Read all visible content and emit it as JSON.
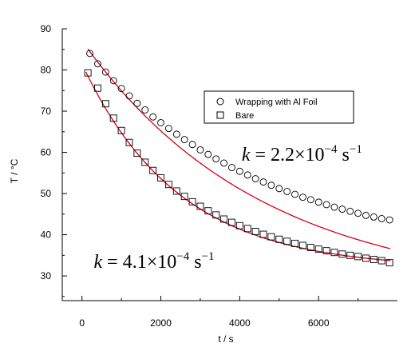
{
  "chart_data": {
    "type": "scatter",
    "title": "",
    "xlabel": "t / s",
    "ylabel": "T / °C",
    "xlim": [
      -500,
      8000
    ],
    "ylim": [
      24,
      90
    ],
    "xticks": [
      0,
      2000,
      4000,
      6000
    ],
    "yticks": [
      30,
      40,
      50,
      60,
      70,
      80,
      90
    ],
    "x_tick_labels": [
      "0",
      "2000",
      "4000",
      "6000"
    ],
    "y_tick_labels": [
      "30",
      "40",
      "50",
      "60",
      "70",
      "80",
      "90"
    ],
    "grid": false,
    "legend": "upper-right-center",
    "fit_color": "#d0021b",
    "series": [
      {
        "name": "Wrapping with Al Foil",
        "marker": "circle",
        "fit": {
          "T_inf": 25.6,
          "A": 61.5,
          "k": 0.00022
        },
        "x": [
          200,
          400,
          600,
          800,
          1000,
          1200,
          1400,
          1600,
          1800,
          2000,
          2200,
          2400,
          2600,
          2800,
          3000,
          3200,
          3400,
          3600,
          3800,
          4000,
          4200,
          4400,
          4600,
          4800,
          5000,
          5200,
          5400,
          5600,
          5800,
          6000,
          6200,
          6400,
          6600,
          6800,
          7000,
          7200,
          7400,
          7600,
          7800
        ],
        "y": [
          84.0,
          81.5,
          79.5,
          77.4,
          75.5,
          73.7,
          71.9,
          70.3,
          68.6,
          67.2,
          65.8,
          64.4,
          63.1,
          61.9,
          60.6,
          59.5,
          58.4,
          57.4,
          56.3,
          55.4,
          54.5,
          53.6,
          52.8,
          52.0,
          51.2,
          50.5,
          49.8,
          49.1,
          48.5,
          47.9,
          47.3,
          46.7,
          46.2,
          45.7,
          45.2,
          44.7,
          44.3,
          43.9,
          43.6
        ]
      },
      {
        "name": "Bare",
        "marker": "square",
        "fit": {
          "T_inf": 31.7,
          "A": 49.8,
          "k": 0.00041
        },
        "x": [
          150,
          400,
          600,
          800,
          1000,
          1200,
          1400,
          1600,
          1800,
          2000,
          2200,
          2400,
          2600,
          2800,
          3000,
          3200,
          3400,
          3600,
          3800,
          4000,
          4200,
          4400,
          4600,
          4800,
          5000,
          5200,
          5400,
          5600,
          5800,
          6000,
          6200,
          6400,
          6600,
          6800,
          7000,
          7200,
          7400,
          7600,
          7800
        ],
        "y": [
          79.3,
          75.6,
          71.8,
          68.3,
          65.3,
          62.4,
          59.8,
          57.6,
          55.6,
          53.8,
          52.2,
          50.6,
          49.3,
          48.0,
          46.9,
          45.8,
          44.8,
          43.8,
          43.0,
          42.2,
          41.5,
          40.8,
          40.1,
          39.5,
          38.9,
          38.4,
          37.9,
          37.4,
          36.9,
          36.5,
          36.1,
          35.7,
          35.3,
          35.0,
          34.7,
          34.3,
          34.0,
          33.7,
          33.2
        ]
      }
    ],
    "annotations": [
      {
        "k_prefix": "k",
        "text": " = 2.2×10",
        "exp": "−4",
        "unit": " s",
        "unit_exp": "−1",
        "anchor_x": 4050,
        "anchor_y": 58
      },
      {
        "k_prefix": "k",
        "text": " = 4.1×10",
        "exp": "−4",
        "unit": " s",
        "unit_exp": "−1",
        "anchor_x": 300,
        "anchor_y": 32
      }
    ]
  }
}
